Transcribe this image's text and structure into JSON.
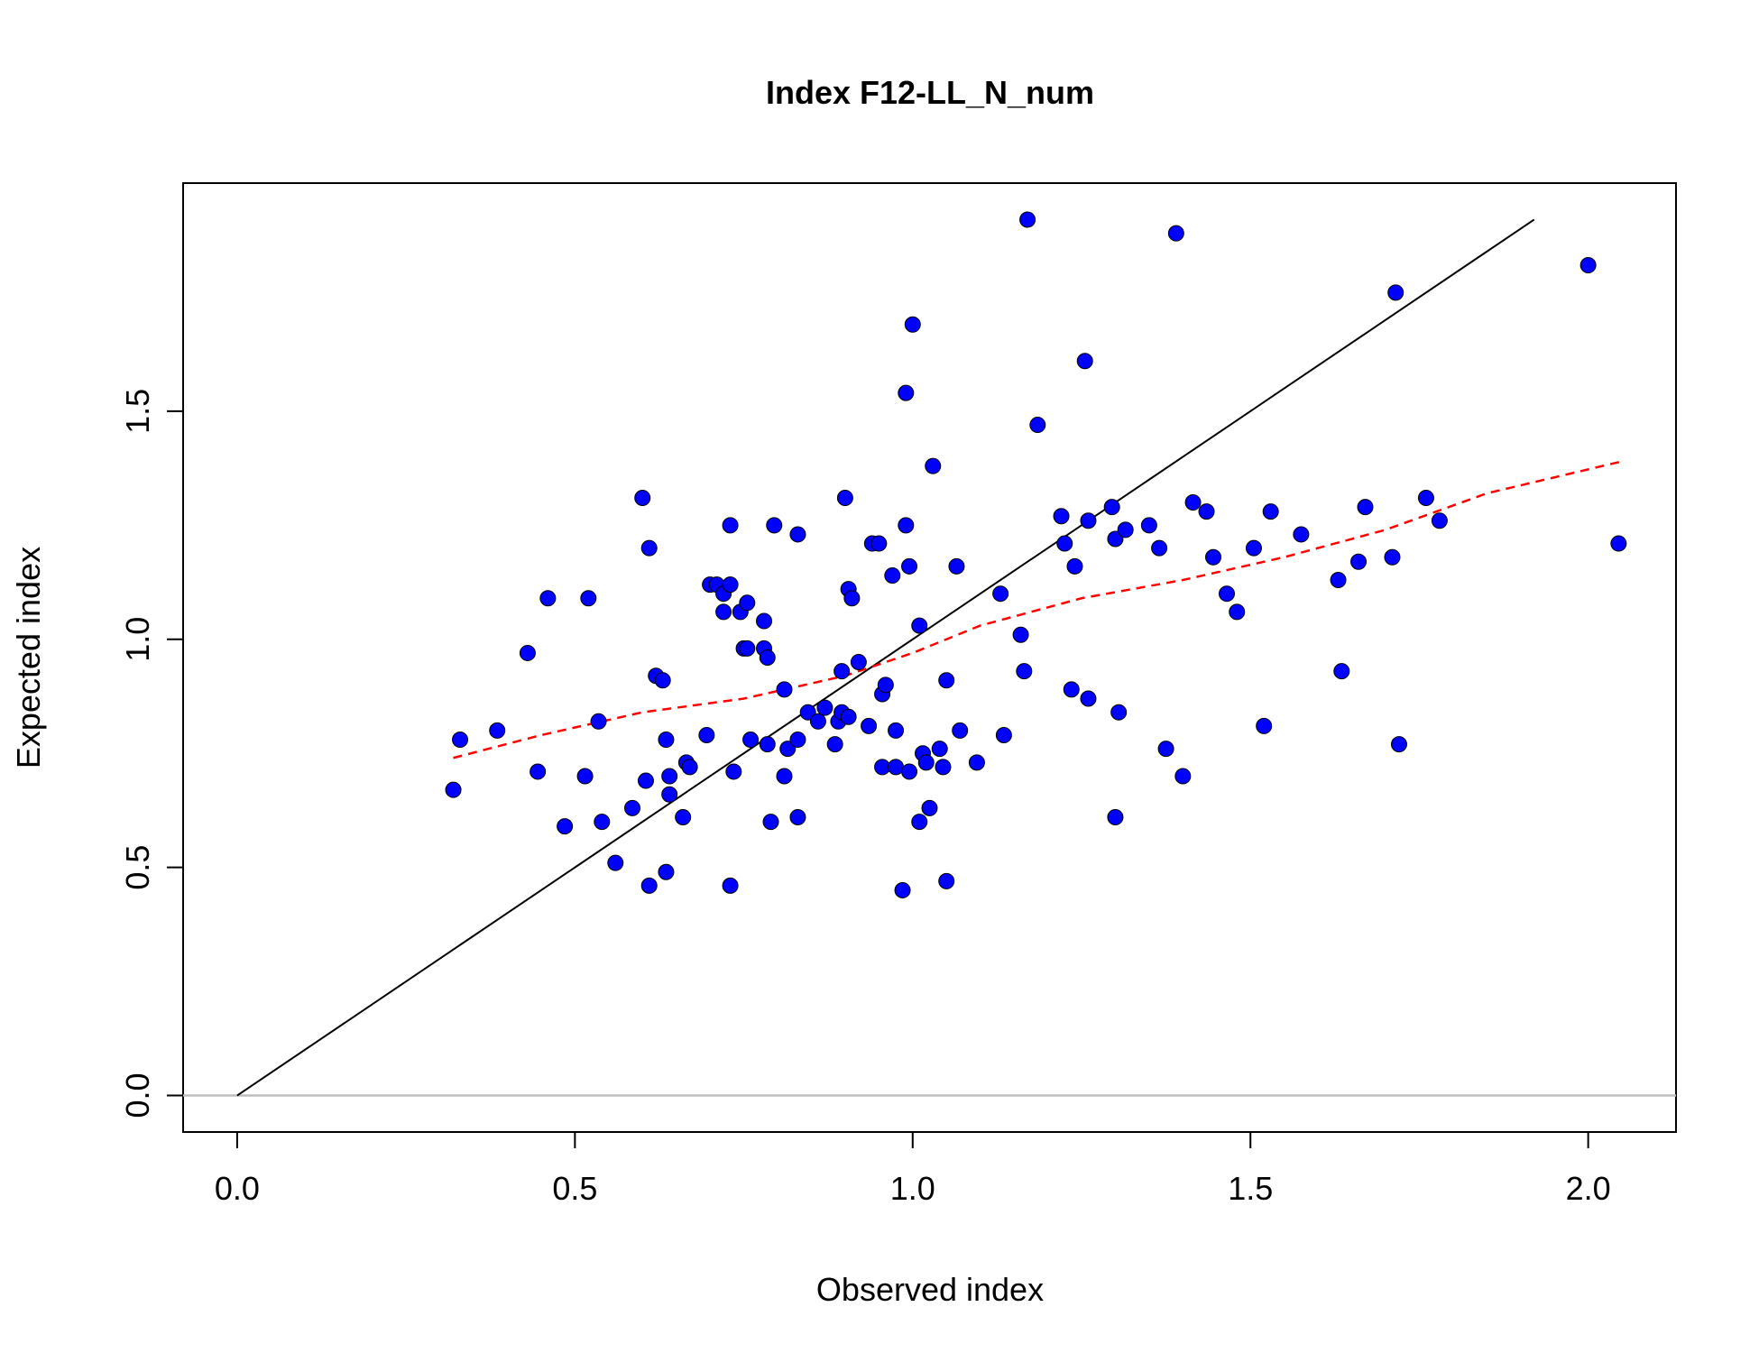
{
  "chart_data": {
    "type": "scatter",
    "title": "Index F12-LL_N_num",
    "xlabel": "Observed index",
    "ylabel": "Expected index",
    "xlim": [
      -0.08,
      2.13
    ],
    "ylim": [
      -0.08,
      2.0
    ],
    "x_ticks": [
      "0.0",
      "0.5",
      "1.0",
      "1.5",
      "2.0"
    ],
    "x_tick_values": [
      0,
      0.5,
      1,
      1.5,
      2
    ],
    "y_ticks": [
      "0.0",
      "0.5",
      "1.0",
      "1.5"
    ],
    "y_tick_values": [
      0,
      0.5,
      1,
      1.5
    ],
    "grid": false,
    "legend": "none",
    "colors": {
      "points": "#0000ff",
      "point_edge": "#000000",
      "identity_line": "#000000",
      "smooth_line": "#ff0000",
      "zero_line": "#bebebe"
    },
    "reference_lines": {
      "identity": {
        "from": [
          0,
          0
        ],
        "to": [
          1.92,
          1.92
        ]
      },
      "smooth": {
        "x": [
          0.32,
          0.45,
          0.6,
          0.75,
          0.9,
          1.0,
          1.1,
          1.25,
          1.4,
          1.55,
          1.7,
          1.85,
          2.05
        ],
        "y": [
          0.74,
          0.79,
          0.84,
          0.87,
          0.92,
          0.97,
          1.03,
          1.09,
          1.13,
          1.18,
          1.24,
          1.32,
          1.39
        ]
      },
      "zero": {
        "y": 0
      }
    },
    "points": {
      "x": [
        0.32,
        0.33,
        0.385,
        0.43,
        0.445,
        0.46,
        0.485,
        0.515,
        0.52,
        0.535,
        0.54,
        0.56,
        0.585,
        0.6,
        0.605,
        0.61,
        0.61,
        0.62,
        0.63,
        0.635,
        0.635,
        0.64,
        0.64,
        0.66,
        0.665,
        0.67,
        0.695,
        0.7,
        0.71,
        0.72,
        0.72,
        0.73,
        0.73,
        0.73,
        0.735,
        0.745,
        0.75,
        0.755,
        0.755,
        0.76,
        0.78,
        0.78,
        0.785,
        0.785,
        0.79,
        0.795,
        0.81,
        0.81,
        0.815,
        0.83,
        0.83,
        0.83,
        0.845,
        0.86,
        0.87,
        0.885,
        0.89,
        0.895,
        0.895,
        0.9,
        0.905,
        0.905,
        0.91,
        0.92,
        0.935,
        0.94,
        0.95,
        0.955,
        0.955,
        0.96,
        0.97,
        0.975,
        0.975,
        0.985,
        0.99,
        0.99,
        0.995,
        0.995,
        1.0,
        1.01,
        1.01,
        1.015,
        1.02,
        1.025,
        1.03,
        1.04,
        1.045,
        1.05,
        1.05,
        1.065,
        1.07,
        1.095,
        1.13,
        1.135,
        1.16,
        1.165,
        1.17,
        1.185,
        1.22,
        1.225,
        1.235,
        1.24,
        1.255,
        1.26,
        1.26,
        1.295,
        1.3,
        1.3,
        1.305,
        1.315,
        1.35,
        1.365,
        1.375,
        1.39,
        1.4,
        1.415,
        1.435,
        1.445,
        1.465,
        1.48,
        1.505,
        1.52,
        1.53,
        1.575,
        1.63,
        1.635,
        1.66,
        1.67,
        1.71,
        1.715,
        1.72,
        1.76,
        1.78,
        2.0,
        2.045
      ],
      "y": [
        0.67,
        0.78,
        0.8,
        0.97,
        0.71,
        1.09,
        0.59,
        0.7,
        1.09,
        0.82,
        0.6,
        0.51,
        0.63,
        1.31,
        0.69,
        0.46,
        1.2,
        0.92,
        0.91,
        0.78,
        0.49,
        0.66,
        0.7,
        0.61,
        0.73,
        0.72,
        0.79,
        1.12,
        1.12,
        1.06,
        1.1,
        0.46,
        1.12,
        1.25,
        0.71,
        1.06,
        0.98,
        1.08,
        0.98,
        0.78,
        1.04,
        0.98,
        0.77,
        0.96,
        0.6,
        1.25,
        0.89,
        0.7,
        0.76,
        1.23,
        0.78,
        0.61,
        0.84,
        0.82,
        0.85,
        0.77,
        0.82,
        0.93,
        0.84,
        1.31,
        1.11,
        0.83,
        1.09,
        0.95,
        0.81,
        1.21,
        1.21,
        0.72,
        0.88,
        0.9,
        1.14,
        0.72,
        0.8,
        0.45,
        1.54,
        1.25,
        0.71,
        1.16,
        1.69,
        1.03,
        0.6,
        0.75,
        0.73,
        0.63,
        1.38,
        0.76,
        0.72,
        0.91,
        0.47,
        1.16,
        0.8,
        0.73,
        1.1,
        0.79,
        1.01,
        0.93,
        1.92,
        1.47,
        1.27,
        1.21,
        0.89,
        1.16,
        1.61,
        0.87,
        1.26,
        1.29,
        1.22,
        0.61,
        0.84,
        1.24,
        1.25,
        1.2,
        0.76,
        1.89,
        0.7,
        1.3,
        1.28,
        1.18,
        1.1,
        1.06,
        1.2,
        0.81,
        1.28,
        1.23,
        1.13,
        0.93,
        1.17,
        1.29,
        1.18,
        1.76,
        0.77,
        1.31,
        1.26,
        1.82,
        1.21
      ]
    }
  }
}
